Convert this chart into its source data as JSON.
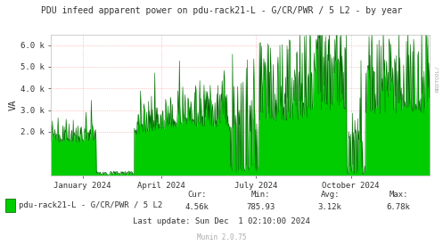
{
  "title": "PDU infeed apparent power on pdu-rack21-L - G/CR/PWR / 5 L2 - by year",
  "ylabel": "VA",
  "x_tick_labels": [
    "January 2024",
    "April 2024",
    "July 2024",
    "October 2024"
  ],
  "y_tick_labels": [
    "2.0 k",
    "3.0 k",
    "4.0 k",
    "5.0 k",
    "6.0 k"
  ],
  "y_ticks": [
    2000,
    3000,
    4000,
    5000,
    6000
  ],
  "ylim": [
    0,
    6500
  ],
  "legend_label": "pdu-rack21-L - G/CR/PWR / 5 L2",
  "cur": "4.56k",
  "min": "785.93",
  "avg": "3.12k",
  "max": "6.78k",
  "last_update": "Last update: Sun Dec  1 02:10:00 2024",
  "munin_version": "Munin 2.0.75",
  "fill_color": "#00CC00",
  "line_color": "#006600",
  "background_color": "#FFFFFF",
  "grid_color": "#DDDDDD",
  "grid_dotted_color": "#FF9999",
  "title_color": "#333333",
  "font_color": "#333333",
  "legend_box_color": "#00CC00",
  "rrdtool_label_color": "#AAAAAA"
}
